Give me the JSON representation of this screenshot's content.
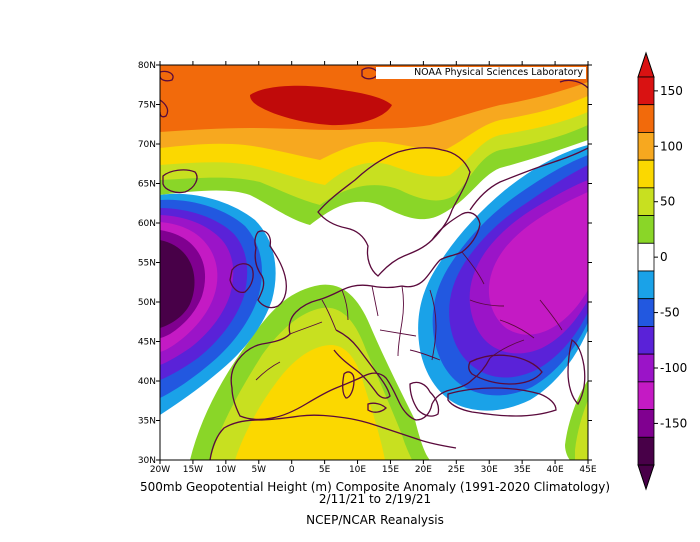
{
  "credit": "NOAA Physical Sciences Laboratory",
  "caption": {
    "line1": "500mb Geopotential Height (m) Composite Anomaly (1991-2020 Climatology)",
    "line2": "2/11/21  to 2/19/21",
    "line3": "NCEP/NCAR Reanalysis"
  },
  "lat_ticks": [
    "30N",
    "35N",
    "40N",
    "45N",
    "50N",
    "55N",
    "60N",
    "65N",
    "70N",
    "75N",
    "80N"
  ],
  "lon_ticks": [
    "20W",
    "15W",
    "10W",
    "5W",
    "0",
    "5E",
    "10E",
    "15E",
    "20E",
    "25E",
    "30E",
    "35E",
    "40E",
    "45E"
  ],
  "colorbar": {
    "labels": [
      "150",
      "100",
      "50",
      "0",
      "-50",
      "-100",
      "-150"
    ],
    "colors": [
      "#d91212",
      "#f26a0b",
      "#f7a81f",
      "#fbd800",
      "#c8e020",
      "#8ad628",
      "#ffffff",
      "#1aa2e8",
      "#2258e0",
      "#5a22d8",
      "#9b14c8",
      "#c41ac4",
      "#800090",
      "#480048"
    ]
  },
  "colors": {
    "deep_red": "#c00a0a",
    "orange": "#f26a0b",
    "light_orange": "#f7a81f",
    "yellow": "#fbd800",
    "yellow_green": "#c8e020",
    "green": "#8ad628",
    "light_blue": "#1aa2e8",
    "blue": "#2258e0",
    "indigo": "#5a22d8",
    "purple": "#9b14c8",
    "magenta": "#c41ac4",
    "dark_purple": "#800090",
    "darkest": "#480048",
    "coast": "#5a0a3c"
  }
}
